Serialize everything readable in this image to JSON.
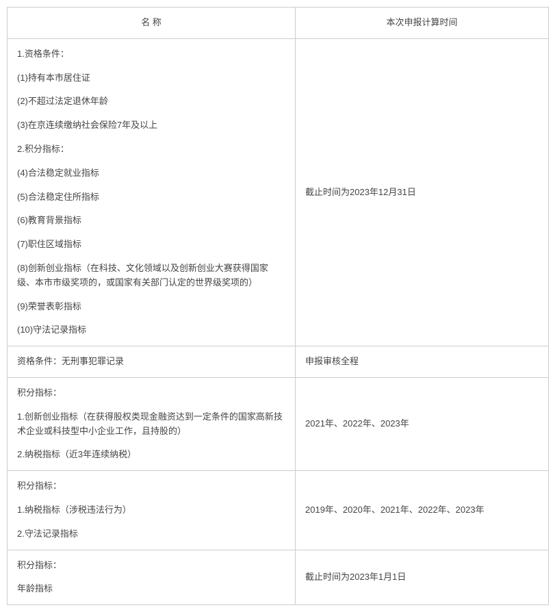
{
  "header": {
    "col1": "名 称",
    "col2": "本次申报计算时间"
  },
  "rows": [
    {
      "name_lines": [
        "1.资格条件：",
        "(1)持有本市居住证",
        "(2)不超过法定退休年龄",
        "(3)在京连续缴纳社会保险7年及以上",
        "2.积分指标：",
        "(4)合法稳定就业指标",
        "(5)合法稳定住所指标",
        "(6)教育背景指标",
        "(7)职住区域指标",
        "(8)创新创业指标（在科技、文化领域以及创新创业大赛获得国家级、本市市级奖项的，或国家有关部门认定的世界级奖项的）",
        "(9)荣誉表彰指标",
        "(10)守法记录指标"
      ],
      "time": "截止时间为2023年12月31日"
    },
    {
      "name_lines": [
        "资格条件：无刑事犯罪记录"
      ],
      "time": "申报审核全程"
    },
    {
      "name_lines": [
        "积分指标：",
        "1.创新创业指标（在获得股权类现金融资达到一定条件的国家高新技术企业或科技型中小企业工作，且持股的）",
        "2.纳税指标（近3年连续纳税）"
      ],
      "time": "2021年、2022年、2023年"
    },
    {
      "name_lines": [
        "积分指标：",
        "1.纳税指标（涉税违法行为）",
        "2.守法记录指标"
      ],
      "time": "2019年、2020年、2021年、2022年、2023年"
    },
    {
      "name_lines": [
        "积分指标：",
        "年龄指标"
      ],
      "time": "截止时间为2023年1月1日"
    }
  ],
  "styles": {
    "border_color": "#cccccc",
    "text_color": "#444444",
    "background_color": "#ffffff",
    "font_size": 13,
    "cell_padding_v": 12,
    "cell_padding_h": 14,
    "line_spacing": 14,
    "col1_width": 421,
    "col2_width": 370
  }
}
